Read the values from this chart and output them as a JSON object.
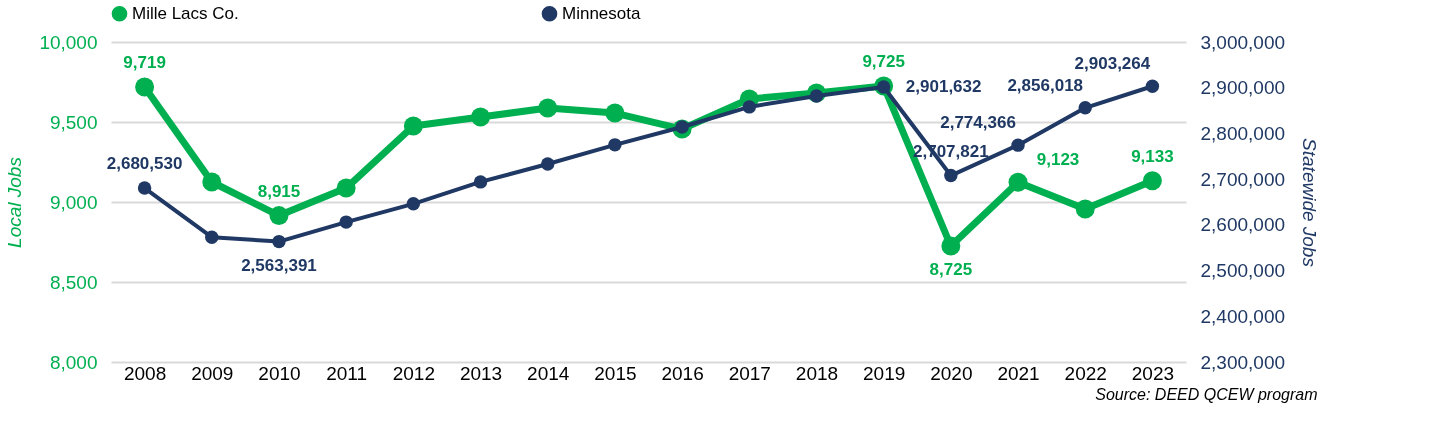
{
  "chart_data": {
    "type": "line",
    "ylabel": "Local Jobs",
    "y2label": "Statewide Jobs",
    "categories": [
      "2008",
      "2009",
      "2010",
      "2011",
      "2012",
      "2013",
      "2014",
      "2015",
      "2016",
      "2017",
      "2018",
      "2019",
      "2020",
      "2021",
      "2022",
      "2023"
    ],
    "series": [
      {
        "name": "Mille Lacs Co.",
        "color": "#00b050",
        "values": [
          9719,
          9125,
          8915,
          9087,
          9475,
          9531,
          9587,
          9556,
          9456,
          9644,
          9681,
          9725,
          8725,
          9123,
          8956,
          9133
        ],
        "value_labels": [
          "9,719",
          null,
          "8,915",
          null,
          null,
          null,
          null,
          null,
          null,
          null,
          null,
          "9,725",
          "8,725",
          "9,123",
          null,
          "9,133"
        ]
      },
      {
        "name": "Minnesota",
        "color": "#1f3864",
        "axis": "y2",
        "values": [
          2680530,
          2573000,
          2563391,
          2606000,
          2646000,
          2694000,
          2733000,
          2775000,
          2814000,
          2858000,
          2882000,
          2901632,
          2707821,
          2774366,
          2856018,
          2903264
        ],
        "value_labels": [
          "2,680,530",
          null,
          "2,563,391",
          null,
          null,
          null,
          null,
          null,
          null,
          null,
          null,
          "2,901,632",
          "2,707,821",
          "2,774,366",
          "2,856,018",
          "2,903,264"
        ]
      }
    ],
    "ylim": [
      8000,
      10000
    ],
    "yticks": [
      {
        "value": 8000,
        "label": "8,000"
      },
      {
        "value": 8500,
        "label": "8,500"
      },
      {
        "value": 9000,
        "label": "9,000"
      },
      {
        "value": 9500,
        "label": "9,500"
      },
      {
        "value": 10000,
        "label": "10,000"
      }
    ],
    "y2lim": [
      2300000,
      3000000
    ],
    "y2ticks": [
      {
        "value": 2300000,
        "label": "2,300,000"
      },
      {
        "value": 2400000,
        "label": "2,400,000"
      },
      {
        "value": 2500000,
        "label": "2,500,000"
      },
      {
        "value": 2600000,
        "label": "2,600,000"
      },
      {
        "value": 2700000,
        "label": "2,700,000"
      },
      {
        "value": 2800000,
        "label": "2,800,000"
      },
      {
        "value": 2900000,
        "label": "2,900,000"
      },
      {
        "value": 3000000,
        "label": "3,000,000"
      }
    ],
    "grid": "y",
    "legend": "top",
    "marker": "circle",
    "line_style": "solid",
    "annotations": [
      "Source: DEED QCEW program"
    ]
  }
}
